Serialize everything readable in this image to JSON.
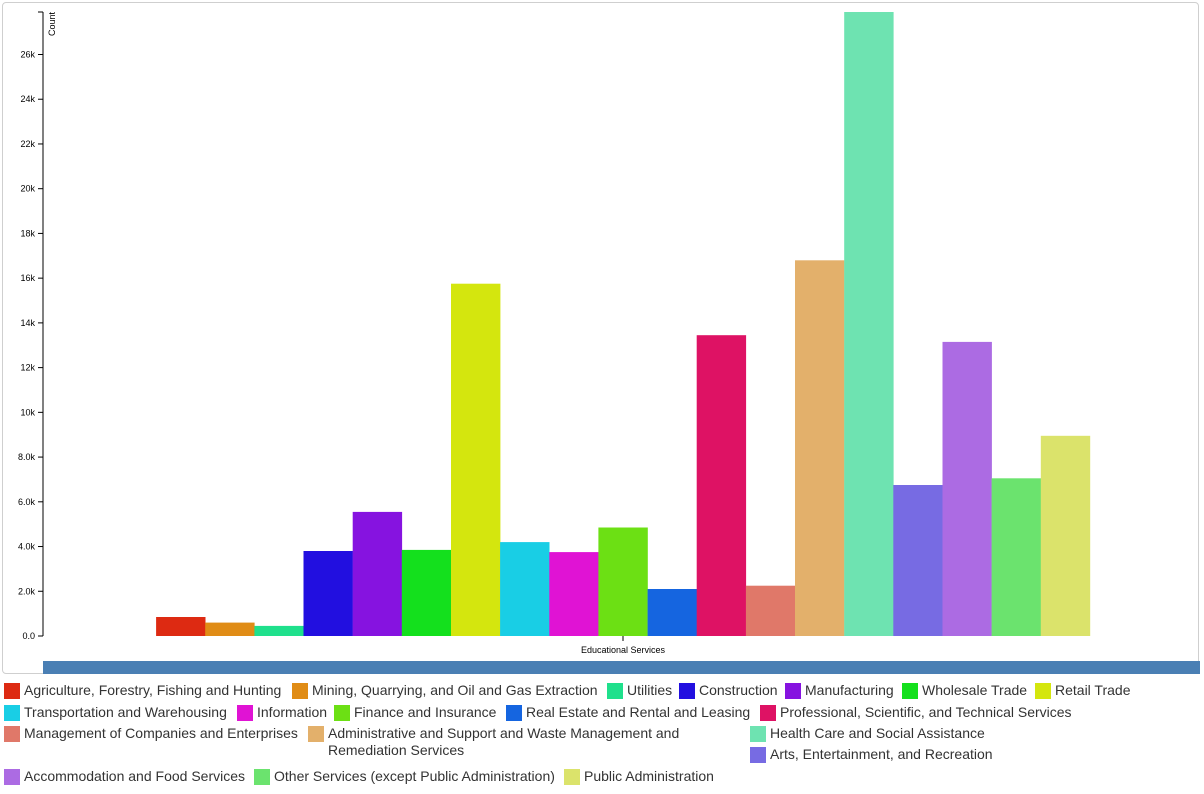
{
  "chart_data": {
    "type": "bar",
    "ylabel": "Count",
    "xlabel": "",
    "categories": [
      "Educational Services"
    ],
    "ylim": [
      0,
      27900
    ],
    "yticks": [
      "0.0",
      "2.0k",
      "4.0k",
      "6.0k",
      "8.0k",
      "10k",
      "12k",
      "14k",
      "16k",
      "18k",
      "20k",
      "22k",
      "24k",
      "26k"
    ],
    "ytick_values": [
      0,
      2000,
      4000,
      6000,
      8000,
      10000,
      12000,
      14000,
      16000,
      18000,
      20000,
      22000,
      24000,
      26000
    ],
    "legend_position": "bottom",
    "series": [
      {
        "name": "Agriculture, Forestry, Fishing and Hunting",
        "color": "#dd2a12",
        "values": [
          850
        ]
      },
      {
        "name": "Mining, Quarrying, and Oil and Gas Extraction",
        "color": "#e08c16",
        "values": [
          600
        ]
      },
      {
        "name": "Utilities",
        "color": "#1fe08c",
        "values": [
          450
        ]
      },
      {
        "name": "Construction",
        "color": "#220fe0",
        "values": [
          3800
        ]
      },
      {
        "name": "Manufacturing",
        "color": "#8613e0",
        "values": [
          5550
        ]
      },
      {
        "name": "Wholesale Trade",
        "color": "#14e01d",
        "values": [
          3850
        ]
      },
      {
        "name": "Retail Trade",
        "color": "#d4e60e",
        "values": [
          15750
        ]
      },
      {
        "name": "Transportation and Warehousing",
        "color": "#19cee5",
        "values": [
          4200
        ]
      },
      {
        "name": "Information",
        "color": "#e013d4",
        "values": [
          3750
        ]
      },
      {
        "name": "Finance and Insurance",
        "color": "#6ce014",
        "values": [
          4850
        ]
      },
      {
        "name": "Real Estate and Rental and Leasing",
        "color": "#1565e0",
        "values": [
          2100
        ]
      },
      {
        "name": "Professional, Scientific, and Technical Services",
        "color": "#de1264",
        "values": [
          13450
        ]
      },
      {
        "name": "Management of Companies and Enterprises",
        "color": "#e07869",
        "values": [
          2250
        ]
      },
      {
        "name": "Administrative and Support and Waste Management and Remediation Services",
        "color": "#e3b06b",
        "values": [
          16800
        ]
      },
      {
        "name": "Health Care and Social Assistance",
        "color": "#6ee3b1",
        "values": [
          27900
        ]
      },
      {
        "name": "Arts, Entertainment, and Recreation",
        "color": "#776be3",
        "values": [
          6750
        ]
      },
      {
        "name": "Accommodation and Food Services",
        "color": "#ac6be3",
        "values": [
          13150
        ]
      },
      {
        "name": "Other Services (except Public Administration)",
        "color": "#6be36e",
        "values": [
          7050
        ]
      },
      {
        "name": "Public Administration",
        "color": "#dbe36b",
        "values": [
          8950
        ]
      }
    ]
  }
}
